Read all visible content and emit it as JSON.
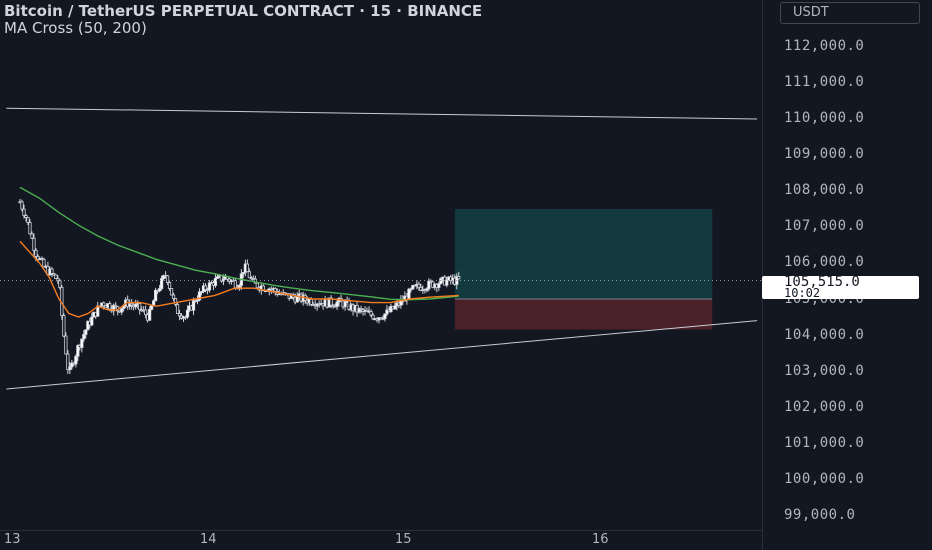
{
  "header": {
    "title": "Bitcoin / TetherUS PERPETUAL CONTRACT · 15 · BINANCE",
    "indicator": "MA Cross (50, 200)"
  },
  "currency": "USDT",
  "price_axis": {
    "labels": [
      "112,000.0",
      "111,000.0",
      "110,000.0",
      "109,000.0",
      "108,000.0",
      "107,000.0",
      "106,000.0",
      "104,000.0",
      "103,000.0",
      "102,000.0",
      "101,000.0",
      "100,000.0",
      "99,000.0"
    ],
    "partial_label": "105,000.0"
  },
  "last_price": {
    "value": "105,515.0",
    "countdown": "10:02"
  },
  "time_axis": {
    "labels": [
      "13",
      "14",
      "15",
      "16"
    ]
  },
  "colors": {
    "background": "#131722",
    "ma_fast": "#f57c1f",
    "ma_slow": "#4caf50",
    "profit_zone": "#123a3e",
    "loss_zone": "#4a2128",
    "trendline": "#c9ccd6"
  },
  "chart_data": {
    "type": "candlestick",
    "symbol": "BTCUSDT.P",
    "interval": "15",
    "ylim": [
      98750,
      112800
    ],
    "x_days": [
      "13",
      "14",
      "15",
      "16"
    ],
    "close_path": [
      [
        0.0,
        107700
      ],
      [
        0.03,
        107300
      ],
      [
        0.08,
        106300
      ],
      [
        0.12,
        105900
      ],
      [
        0.2,
        105500
      ],
      [
        0.22,
        104200
      ],
      [
        0.25,
        102900
      ],
      [
        0.3,
        103700
      ],
      [
        0.35,
        104300
      ],
      [
        0.42,
        104900
      ],
      [
        0.47,
        104800
      ],
      [
        0.5,
        104700
      ],
      [
        0.55,
        104900
      ],
      [
        0.62,
        104700
      ],
      [
        0.66,
        104500
      ],
      [
        0.7,
        105200
      ],
      [
        0.75,
        105700
      ],
      [
        0.8,
        104700
      ],
      [
        0.85,
        104500
      ],
      [
        0.9,
        105000
      ],
      [
        0.95,
        105300
      ],
      [
        1.0,
        105500
      ],
      [
        1.05,
        105600
      ],
      [
        1.12,
        105400
      ],
      [
        1.15,
        105900
      ],
      [
        1.2,
        105400
      ],
      [
        1.28,
        105300
      ],
      [
        1.35,
        105100
      ],
      [
        1.45,
        105000
      ],
      [
        1.55,
        104900
      ],
      [
        1.65,
        104900
      ],
      [
        1.72,
        104700
      ],
      [
        1.78,
        104600
      ],
      [
        1.83,
        104500
      ],
      [
        1.88,
        104600
      ],
      [
        1.93,
        104800
      ],
      [
        1.97,
        105000
      ],
      [
        2.02,
        105300
      ],
      [
        2.1,
        105400
      ],
      [
        2.18,
        105500
      ],
      [
        2.25,
        105515
      ]
    ],
    "ma_fast": [
      [
        0.0,
        106600
      ],
      [
        0.05,
        106300
      ],
      [
        0.1,
        106000
      ],
      [
        0.15,
        105600
      ],
      [
        0.2,
        105000
      ],
      [
        0.25,
        104600
      ],
      [
        0.3,
        104500
      ],
      [
        0.35,
        104600
      ],
      [
        0.4,
        104800
      ],
      [
        0.45,
        104700
      ],
      [
        0.5,
        104700
      ],
      [
        0.55,
        104900
      ],
      [
        0.62,
        104900
      ],
      [
        0.7,
        104800
      ],
      [
        0.8,
        104900
      ],
      [
        0.9,
        105000
      ],
      [
        1.0,
        105100
      ],
      [
        1.1,
        105300
      ],
      [
        1.2,
        105300
      ],
      [
        1.3,
        105200
      ],
      [
        1.4,
        105100
      ],
      [
        1.5,
        105000
      ],
      [
        1.6,
        105000
      ],
      [
        1.7,
        104950
      ],
      [
        1.8,
        104900
      ],
      [
        1.9,
        104900
      ],
      [
        2.0,
        105000
      ],
      [
        2.1,
        105050
      ],
      [
        2.25,
        105100
      ]
    ],
    "ma_slow": [
      [
        0.0,
        108100
      ],
      [
        0.1,
        107800
      ],
      [
        0.2,
        107400
      ],
      [
        0.3,
        107050
      ],
      [
        0.4,
        106750
      ],
      [
        0.5,
        106500
      ],
      [
        0.6,
        106300
      ],
      [
        0.7,
        106100
      ],
      [
        0.8,
        105950
      ],
      [
        0.9,
        105800
      ],
      [
        1.0,
        105700
      ],
      [
        1.1,
        105580
      ],
      [
        1.2,
        105480
      ],
      [
        1.3,
        105380
      ],
      [
        1.4,
        105300
      ],
      [
        1.5,
        105230
      ],
      [
        1.6,
        105180
      ],
      [
        1.7,
        105120
      ],
      [
        1.8,
        105060
      ],
      [
        1.9,
        104990
      ],
      [
        2.0,
        104980
      ],
      [
        2.1,
        105000
      ],
      [
        2.2,
        105050
      ],
      [
        2.25,
        105080
      ]
    ],
    "trendlines": [
      {
        "name": "upper",
        "from": [
          -0.07,
          110300
        ],
        "to": [
          3.78,
          110000
        ]
      },
      {
        "name": "lower",
        "from": [
          -0.07,
          102500
        ],
        "to": [
          3.78,
          104400
        ]
      }
    ],
    "position_tool": {
      "type": "long",
      "entry": 105000,
      "target": 107500,
      "stop": 104150,
      "x_start": 2.23,
      "x_end": 3.55
    },
    "last_price": 105515,
    "price_line": 105515
  }
}
